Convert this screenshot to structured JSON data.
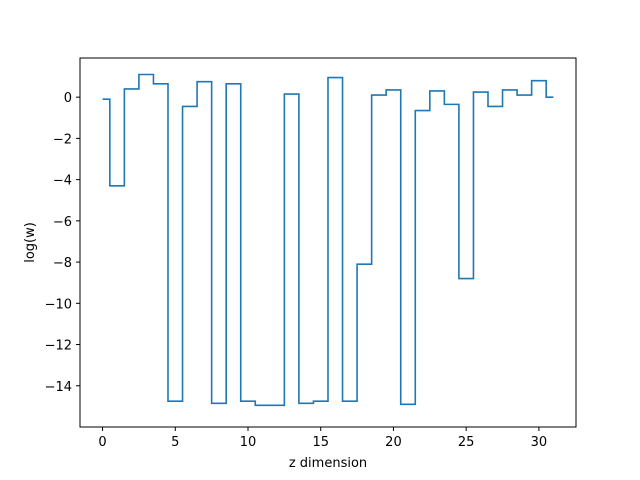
{
  "chart_data": {
    "type": "line",
    "drawstyle": "steps-mid",
    "title": "",
    "xlabel": "z dimension",
    "ylabel": "log(w)",
    "xlim": [
      -1.55,
      32.55
    ],
    "ylim": [
      -16.0,
      1.9
    ],
    "xticks": [
      0,
      5,
      10,
      15,
      20,
      25,
      30
    ],
    "yticks": [
      0,
      -2,
      -4,
      -6,
      -8,
      -10,
      -12,
      -14
    ],
    "ytick_labels": [
      "0",
      "−2",
      "−4",
      "−6",
      "−8",
      "−10",
      "−12",
      "−14"
    ],
    "grid": false,
    "line_color": "#1f77b4",
    "series": [
      {
        "x": [
          0,
          1,
          2,
          3,
          4,
          5,
          6,
          7,
          8,
          9,
          10,
          11,
          12,
          13,
          14,
          15,
          16,
          17,
          18,
          19,
          20,
          21,
          22,
          23,
          24,
          25,
          26,
          27,
          28,
          29,
          30,
          31
        ],
        "y": [
          -0.1,
          -4.3,
          0.4,
          1.1,
          0.65,
          -14.75,
          -0.45,
          0.75,
          -14.85,
          0.65,
          -14.75,
          -14.95,
          -14.95,
          0.15,
          -14.85,
          -14.75,
          0.95,
          -14.75,
          -8.1,
          0.1,
          0.35,
          -14.9,
          -0.65,
          0.3,
          -0.35,
          -8.8,
          0.25,
          -0.45,
          0.35,
          0.1,
          0.8,
          0.0
        ]
      }
    ]
  }
}
